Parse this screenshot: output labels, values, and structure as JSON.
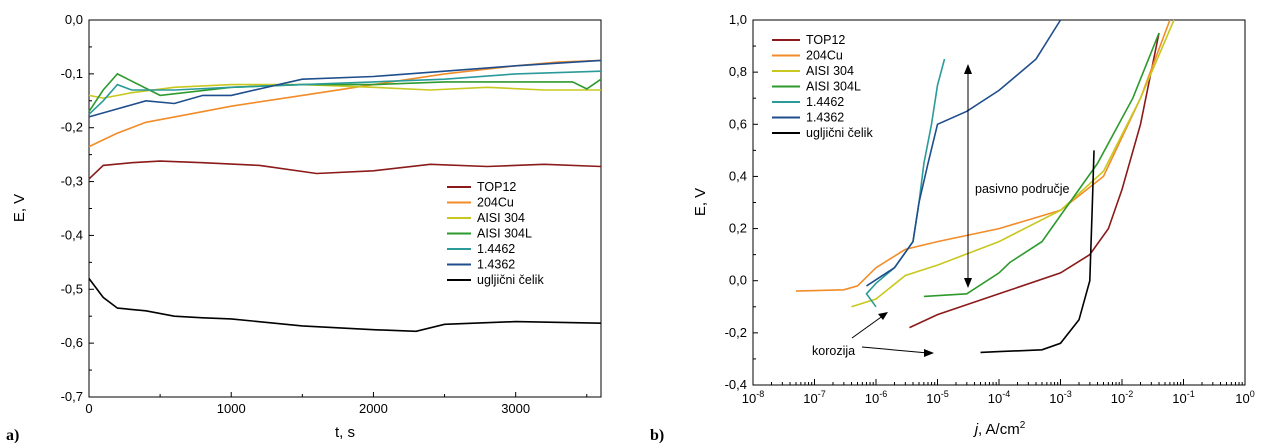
{
  "colors": {
    "TOP12": "#8b1a1a",
    "204Cu": "#f28c28",
    "AISI 304": "#c8c820",
    "AISI 304L": "#2e9a2e",
    "1.4462": "#2a9a9a",
    "1.4362": "#1f4e8c",
    "ugljični čelik": "#000000"
  },
  "chart_data": [
    {
      "panel_label": "a)",
      "type": "line",
      "xlabel": "t, s",
      "ylabel": "E, V",
      "xlim": [
        0,
        3600
      ],
      "ylim": [
        -0.7,
        0.0
      ],
      "xticks": [
        0,
        1000,
        2000,
        3000
      ],
      "xtick_labels": [
        "0",
        "1000",
        "2000",
        "3000"
      ],
      "yticks": [
        0.0,
        -0.1,
        -0.2,
        -0.3,
        -0.4,
        -0.5,
        -0.6,
        -0.7
      ],
      "ytick_labels": [
        "0,0",
        "-0,1",
        "-0,2",
        "-0,3",
        "-0,4",
        "-0,5",
        "-0,6",
        "-0,7"
      ],
      "grid": false,
      "legend_position": "right-middle",
      "series": [
        {
          "name": "TOP12",
          "x": [
            0,
            100,
            300,
            500,
            800,
            1200,
            1600,
            2000,
            2400,
            2800,
            3200,
            3600
          ],
          "y": [
            -0.295,
            -0.27,
            -0.265,
            -0.262,
            -0.265,
            -0.27,
            -0.285,
            -0.28,
            -0.268,
            -0.272,
            -0.268,
            -0.272
          ]
        },
        {
          "name": "204Cu",
          "x": [
            0,
            200,
            400,
            700,
            1000,
            1500,
            2000,
            2500,
            3000,
            3300,
            3600
          ],
          "y": [
            -0.235,
            -0.21,
            -0.19,
            -0.175,
            -0.16,
            -0.14,
            -0.12,
            -0.1,
            -0.085,
            -0.078,
            -0.075
          ]
        },
        {
          "name": "AISI 304",
          "x": [
            0,
            100,
            300,
            600,
            1000,
            1500,
            2000,
            2400,
            2800,
            3200,
            3600
          ],
          "y": [
            -0.14,
            -0.145,
            -0.135,
            -0.125,
            -0.12,
            -0.12,
            -0.125,
            -0.13,
            -0.125,
            -0.13,
            -0.13
          ]
        },
        {
          "name": "AISI 304L",
          "x": [
            0,
            100,
            200,
            500,
            1000,
            1500,
            2000,
            2500,
            3000,
            3400,
            3500,
            3600
          ],
          "y": [
            -0.17,
            -0.13,
            -0.1,
            -0.14,
            -0.125,
            -0.12,
            -0.12,
            -0.115,
            -0.115,
            -0.115,
            -0.128,
            -0.11
          ]
        },
        {
          "name": "1.4462",
          "x": [
            0,
            100,
            200,
            300,
            600,
            1000,
            1500,
            2000,
            2500,
            3000,
            3600
          ],
          "y": [
            -0.175,
            -0.15,
            -0.12,
            -0.13,
            -0.13,
            -0.125,
            -0.12,
            -0.115,
            -0.11,
            -0.1,
            -0.095
          ]
        },
        {
          "name": "1.4362",
          "x": [
            0,
            200,
            400,
            600,
            800,
            1000,
            1500,
            2000,
            2500,
            3000,
            3600
          ],
          "y": [
            -0.18,
            -0.165,
            -0.15,
            -0.155,
            -0.14,
            -0.14,
            -0.11,
            -0.105,
            -0.095,
            -0.085,
            -0.075
          ]
        },
        {
          "name": "ugljični čelik",
          "x": [
            0,
            100,
            200,
            400,
            600,
            800,
            1000,
            1500,
            2000,
            2300,
            2500,
            3000,
            3600
          ],
          "y": [
            -0.48,
            -0.515,
            -0.535,
            -0.54,
            -0.55,
            -0.553,
            -0.555,
            -0.568,
            -0.575,
            -0.578,
            -0.565,
            -0.56,
            -0.563
          ]
        }
      ]
    },
    {
      "panel_label": "b)",
      "type": "line",
      "xlabel": "j, A/cm²",
      "ylabel": "E, V",
      "xscale": "log",
      "xlim": [
        1e-08,
        1
      ],
      "ylim": [
        -0.4,
        1.0
      ],
      "xtick_labels": [
        "10-8",
        "10-7",
        "10-6",
        "10-5",
        "10-4",
        "10-3",
        "10-2",
        "10-1",
        "100"
      ],
      "yticks": [
        -0.4,
        -0.2,
        0.0,
        0.2,
        0.4,
        0.6,
        0.8,
        1.0
      ],
      "ytick_labels": [
        "-0,4",
        "-0,2",
        "0,0",
        "0,2",
        "0,4",
        "0,6",
        "0,8",
        "1,0"
      ],
      "grid": false,
      "legend_position": "top-left",
      "annotations": [
        "pasivno područje",
        "korozija"
      ],
      "series": [
        {
          "name": "TOP12",
          "x": [
            3.5e-06,
            1e-05,
            0.0001,
            0.001,
            0.003,
            0.006,
            0.01,
            0.02,
            0.04
          ],
          "y": [
            -0.18,
            -0.13,
            -0.05,
            0.03,
            0.1,
            0.2,
            0.35,
            0.6,
            0.95
          ]
        },
        {
          "name": "204Cu",
          "x": [
            5e-08,
            3e-07,
            5e-07,
            1e-06,
            3e-06,
            1e-05,
            0.0001,
            0.001,
            0.005,
            0.02,
            0.06
          ],
          "y": [
            -0.04,
            -0.035,
            -0.02,
            0.05,
            0.12,
            0.15,
            0.2,
            0.27,
            0.4,
            0.7,
            1.0
          ]
        },
        {
          "name": "AISI 304",
          "x": [
            4e-07,
            1e-06,
            3e-06,
            1e-05,
            0.0001,
            0.001,
            0.005,
            0.02,
            0.07
          ],
          "y": [
            -0.1,
            -0.07,
            0.02,
            0.06,
            0.15,
            0.27,
            0.42,
            0.7,
            1.0
          ]
        },
        {
          "name": "AISI 304L",
          "x": [
            6e-06,
            3e-05,
            0.0001,
            0.00015,
            0.0005,
            0.001,
            0.004,
            0.015,
            0.04
          ],
          "y": [
            -0.06,
            -0.05,
            0.03,
            0.07,
            0.15,
            0.25,
            0.45,
            0.7,
            0.95
          ]
        },
        {
          "name": "1.4462",
          "x": [
            1e-06,
            7e-07,
            1e-06,
            2e-06,
            4e-06,
            5e-06,
            6e-06,
            8e-06,
            1e-05,
            1.3e-05
          ],
          "y": [
            -0.1,
            -0.05,
            -0.01,
            0.05,
            0.15,
            0.3,
            0.45,
            0.6,
            0.75,
            0.85
          ]
        },
        {
          "name": "1.4362",
          "x": [
            7e-07,
            2e-06,
            4e-06,
            5e-06,
            7e-06,
            1e-05,
            3e-05,
            0.0001,
            0.0004,
            0.001
          ],
          "y": [
            -0.02,
            0.05,
            0.15,
            0.3,
            0.45,
            0.6,
            0.65,
            0.73,
            0.85,
            1.0
          ]
        },
        {
          "name": "ugljični čelik",
          "x": [
            5e-05,
            0.0001,
            0.0005,
            0.001,
            0.002,
            0.003,
            0.0033,
            0.0035
          ],
          "y": [
            -0.275,
            -0.272,
            -0.265,
            -0.24,
            -0.15,
            0.0,
            0.3,
            0.5
          ]
        }
      ]
    }
  ]
}
